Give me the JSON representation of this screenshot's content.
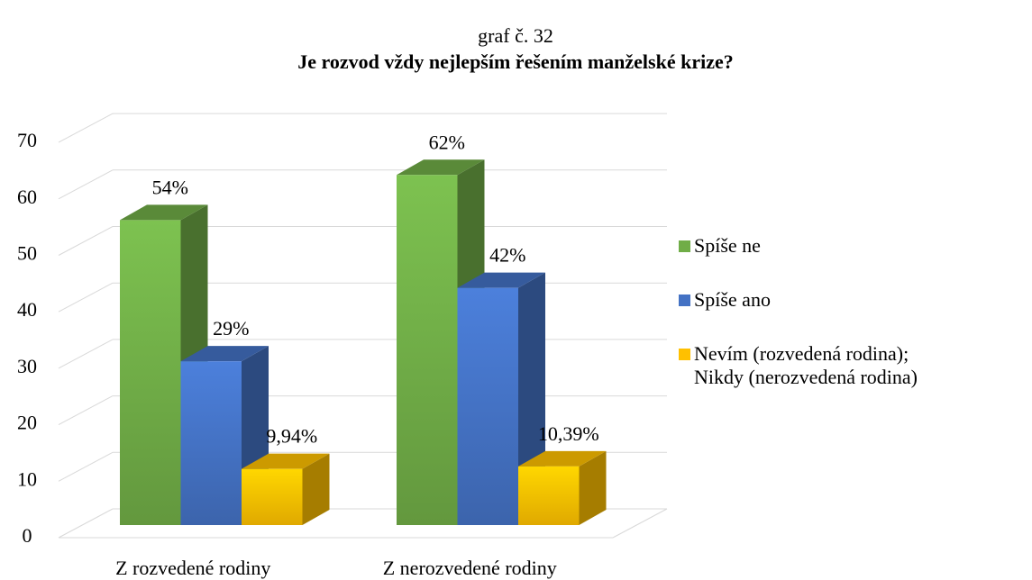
{
  "chart_data": {
    "type": "bar3d",
    "title": "Je rozvod vždy nejlepším řešením manželské krize?",
    "subtitle": "graf č. 32",
    "categories": [
      "Z rozvedené rodiny",
      "Z nerozvedené rodiny"
    ],
    "series": [
      {
        "name": "Spíše ne",
        "color": "#70ad47",
        "values": [
          54,
          62
        ],
        "value_labels": [
          "54%",
          "62%"
        ]
      },
      {
        "name": "Spíše ano",
        "color": "#4472c4",
        "values": [
          29,
          42
        ],
        "value_labels": [
          "29%",
          "42%"
        ]
      },
      {
        "name": "Nevím (rozvedená rodina); Nikdy (nerozvedená rodina)",
        "color": "#ffc000",
        "values": [
          9.94,
          10.39
        ],
        "value_labels": [
          "9,94%",
          "10,39%"
        ]
      }
    ],
    "ylim": [
      0,
      70
    ],
    "yticks": [
      0,
      10,
      20,
      30,
      40,
      50,
      60,
      70
    ],
    "grid": true,
    "legend": "right"
  }
}
